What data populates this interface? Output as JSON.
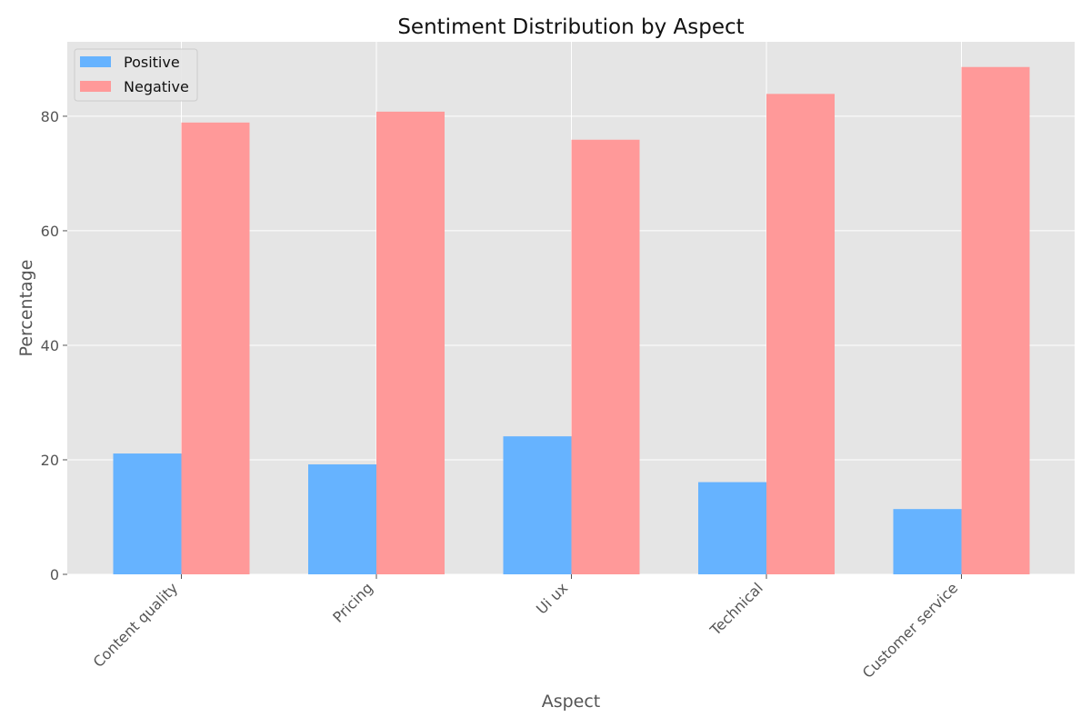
{
  "chart_data": {
    "type": "bar",
    "title": "Sentiment Distribution by Aspect",
    "xlabel": "Aspect",
    "ylabel": "Percentage",
    "categories": [
      "Content quality",
      "Pricing",
      "Ui ux",
      "Technical",
      "Customer service"
    ],
    "series": [
      {
        "name": "Positive",
        "color": "#66b3ff",
        "values": [
          21.1,
          19.2,
          24.1,
          16.1,
          11.4
        ]
      },
      {
        "name": "Negative",
        "color": "#ff9999",
        "values": [
          78.9,
          80.8,
          75.9,
          83.9,
          88.6
        ]
      }
    ],
    "ylim": [
      0,
      93
    ],
    "yticks": [
      0,
      20,
      40,
      60,
      80
    ],
    "grid": true,
    "legend_position": "top-left",
    "background_color": "#e5e5e5",
    "grid_color": "#ffffff"
  }
}
